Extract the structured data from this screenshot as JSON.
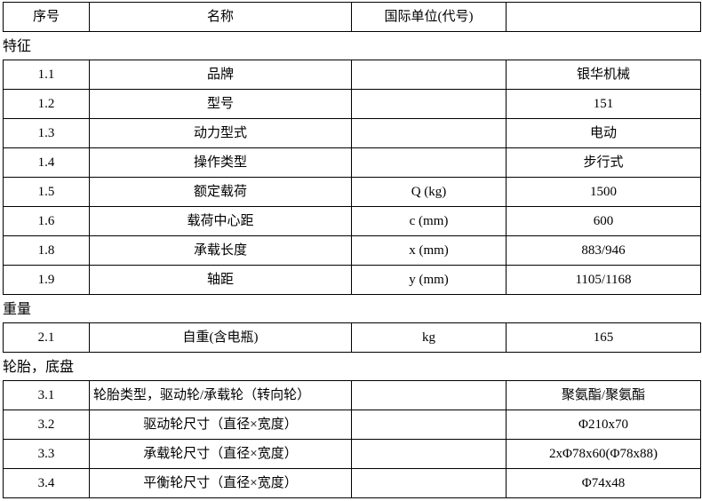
{
  "header": {
    "columns": [
      "序号",
      "名称",
      "国际单位(代号)",
      ""
    ]
  },
  "sections": [
    {
      "title": "特征",
      "rows": [
        {
          "num": "1.1",
          "name": "品牌",
          "unit": "",
          "value": "银华机械"
        },
        {
          "num": "1.2",
          "name": "型号",
          "unit": "",
          "value": "151"
        },
        {
          "num": "1.3",
          "name": "动力型式",
          "unit": "",
          "value": "电动"
        },
        {
          "num": "1.4",
          "name": "操作类型",
          "unit": "",
          "value": "步行式"
        },
        {
          "num": "1.5",
          "name": "额定载荷",
          "unit": "Q (kg)",
          "value": "1500"
        },
        {
          "num": "1.6",
          "name": "载荷中心距",
          "unit": "c (mm)",
          "value": "600"
        },
        {
          "num": "1.8",
          "name": "承载长度",
          "unit": "x (mm)",
          "value": "883/946"
        },
        {
          "num": "1.9",
          "name": "轴距",
          "unit": "y (mm)",
          "value": "1105/1168"
        }
      ]
    },
    {
      "title": "重量",
      "rows": [
        {
          "num": "2.1",
          "name": "自重(含电瓶)",
          "unit": "kg",
          "value": "165"
        }
      ]
    },
    {
      "title": "轮胎，底盘",
      "rows": [
        {
          "num": "3.1",
          "name": "轮胎类型，驱动轮/承载轮（转向轮）",
          "name_align": "left",
          "unit": "",
          "value": "聚氨酯/聚氨酯"
        },
        {
          "num": "3.2",
          "name": "驱动轮尺寸（直径×宽度）",
          "unit": "",
          "value": "Φ210x70"
        },
        {
          "num": "3.3",
          "name": "承载轮尺寸（直径×宽度）",
          "unit": "",
          "value": "2xΦ78x60(Φ78x88)"
        },
        {
          "num": "3.4",
          "name": "平衡轮尺寸（直径×宽度）",
          "unit": "",
          "value": "Φ74x48"
        }
      ]
    }
  ]
}
